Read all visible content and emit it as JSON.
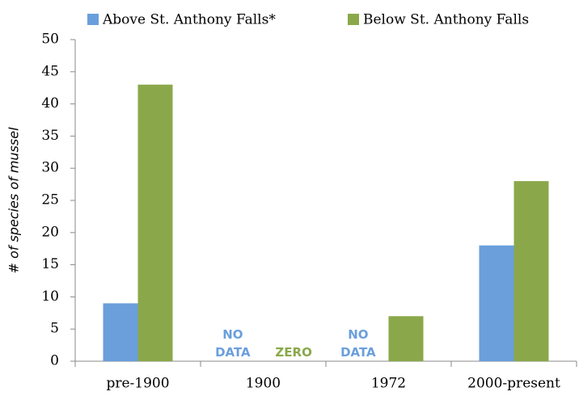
{
  "chart_data": {
    "type": "bar",
    "categories": [
      "pre-1900",
      "1900",
      "1972",
      "2000-present"
    ],
    "series": [
      {
        "name": "Above St. Anthony Falls*",
        "color": "#6a9fdc",
        "values": [
          9,
          null,
          null,
          18
        ]
      },
      {
        "name": "Below St. Anthony Falls",
        "color": "#8aa84a",
        "values": [
          43,
          0,
          7,
          28
        ]
      }
    ],
    "ylabel": "# of species of mussel",
    "ylim": [
      0,
      50
    ],
    "yticks": [
      0,
      5,
      10,
      15,
      20,
      25,
      30,
      35,
      40,
      45,
      50
    ],
    "annotations": [
      "NO DATA",
      "ZERO",
      "NO DATA"
    ],
    "legend": "top"
  }
}
